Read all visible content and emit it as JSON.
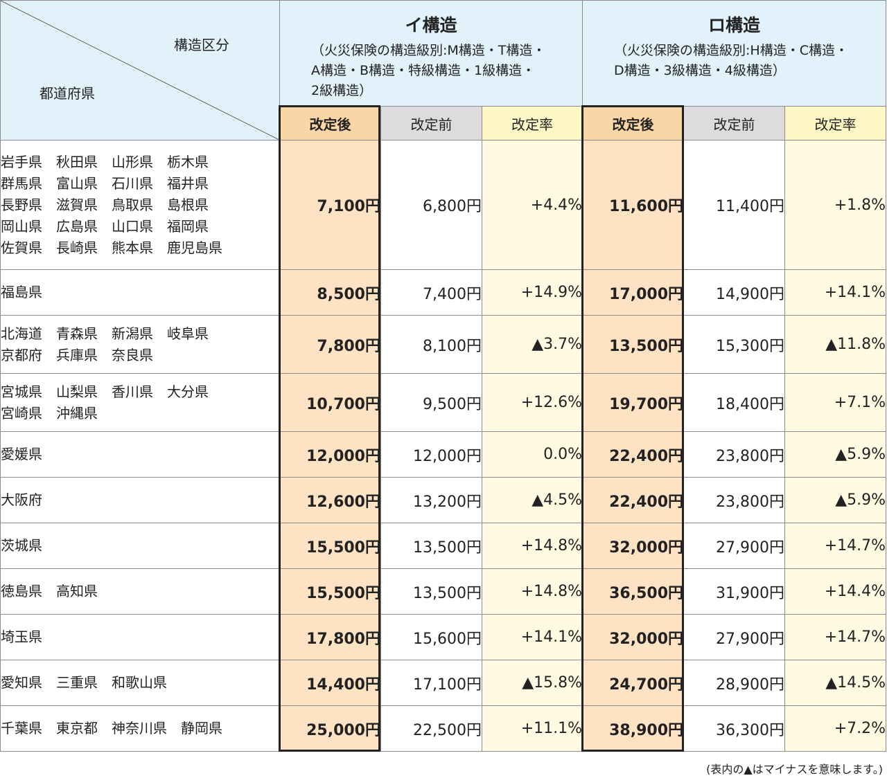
{
  "header": {
    "corner_top": "構造区分",
    "corner_bottom": "都道府県",
    "groups": [
      {
        "title": "イ構造",
        "note": "（火災保険の構造級別:M構造・T構造・\nA構造・B構造・特級構造・1級構造・\n2級構造）"
      },
      {
        "title": "ロ構造",
        "note": "（火災保険の構造級別:H構造・C構造・\nD構造・3級構造・4級構造）"
      }
    ],
    "subcolumns": [
      "改定後",
      "改定前",
      "改定率",
      "改定後",
      "改定前",
      "改定率"
    ]
  },
  "rows": [
    {
      "prefs": [
        "岩手県　秋田県　山形県　栃木県",
        "群馬県　富山県　石川県　福井県",
        "長野県　滋賀県　鳥取県　島根県",
        "岡山県　広島県　山口県　福岡県",
        "佐賀県　長崎県　熊本県　鹿児島県"
      ],
      "cells": [
        "7,100円",
        "6,800円",
        "+4.4%",
        "11,600円",
        "11,400円",
        "+1.8%"
      ]
    },
    {
      "prefs": [
        "福島県"
      ],
      "cells": [
        "8,500円",
        "7,400円",
        "+14.9%",
        "17,000円",
        "14,900円",
        "+14.1%"
      ]
    },
    {
      "prefs": [
        "北海道　青森県　新潟県　岐阜県",
        "京都府　兵庫県　奈良県"
      ],
      "cells": [
        "7,800円",
        "8,100円",
        "▲3.7%",
        "13,500円",
        "15,300円",
        "▲11.8%"
      ]
    },
    {
      "prefs": [
        "宮城県　山梨県　香川県　大分県",
        "宮崎県　沖縄県"
      ],
      "cells": [
        "10,700円",
        "9,500円",
        "+12.6%",
        "19,700円",
        "18,400円",
        "+7.1%"
      ]
    },
    {
      "prefs": [
        "愛媛県"
      ],
      "cells": [
        "12,000円",
        "12,000円",
        "0.0%",
        "22,400円",
        "23,800円",
        "▲5.9%"
      ]
    },
    {
      "prefs": [
        "大阪府"
      ],
      "cells": [
        "12,600円",
        "13,200円",
        "▲4.5%",
        "22,400円",
        "23,800円",
        "▲5.9%"
      ]
    },
    {
      "prefs": [
        "茨城県"
      ],
      "cells": [
        "15,500円",
        "13,500円",
        "+14.8%",
        "32,000円",
        "27,900円",
        "+14.7%"
      ]
    },
    {
      "prefs": [
        "徳島県　高知県"
      ],
      "cells": [
        "15,500円",
        "13,500円",
        "+14.8%",
        "36,500円",
        "31,900円",
        "+14.4%"
      ]
    },
    {
      "prefs": [
        "埼玉県"
      ],
      "cells": [
        "17,800円",
        "15,600円",
        "+14.1%",
        "32,000円",
        "27,900円",
        "+14.7%"
      ]
    },
    {
      "prefs": [
        "愛知県　三重県　和歌山県"
      ],
      "cells": [
        "14,400円",
        "17,100円",
        "▲15.8%",
        "24,700円",
        "28,900円",
        "▲14.5%"
      ]
    },
    {
      "prefs": [
        "千葉県　東京都　神奈川県　静岡県"
      ],
      "cells": [
        "25,000円",
        "22,500円",
        "+11.1%",
        "38,900円",
        "36,300円",
        "+7.2%"
      ]
    }
  ],
  "footnote": "(表内の▲はマイナスを意味します。)"
}
